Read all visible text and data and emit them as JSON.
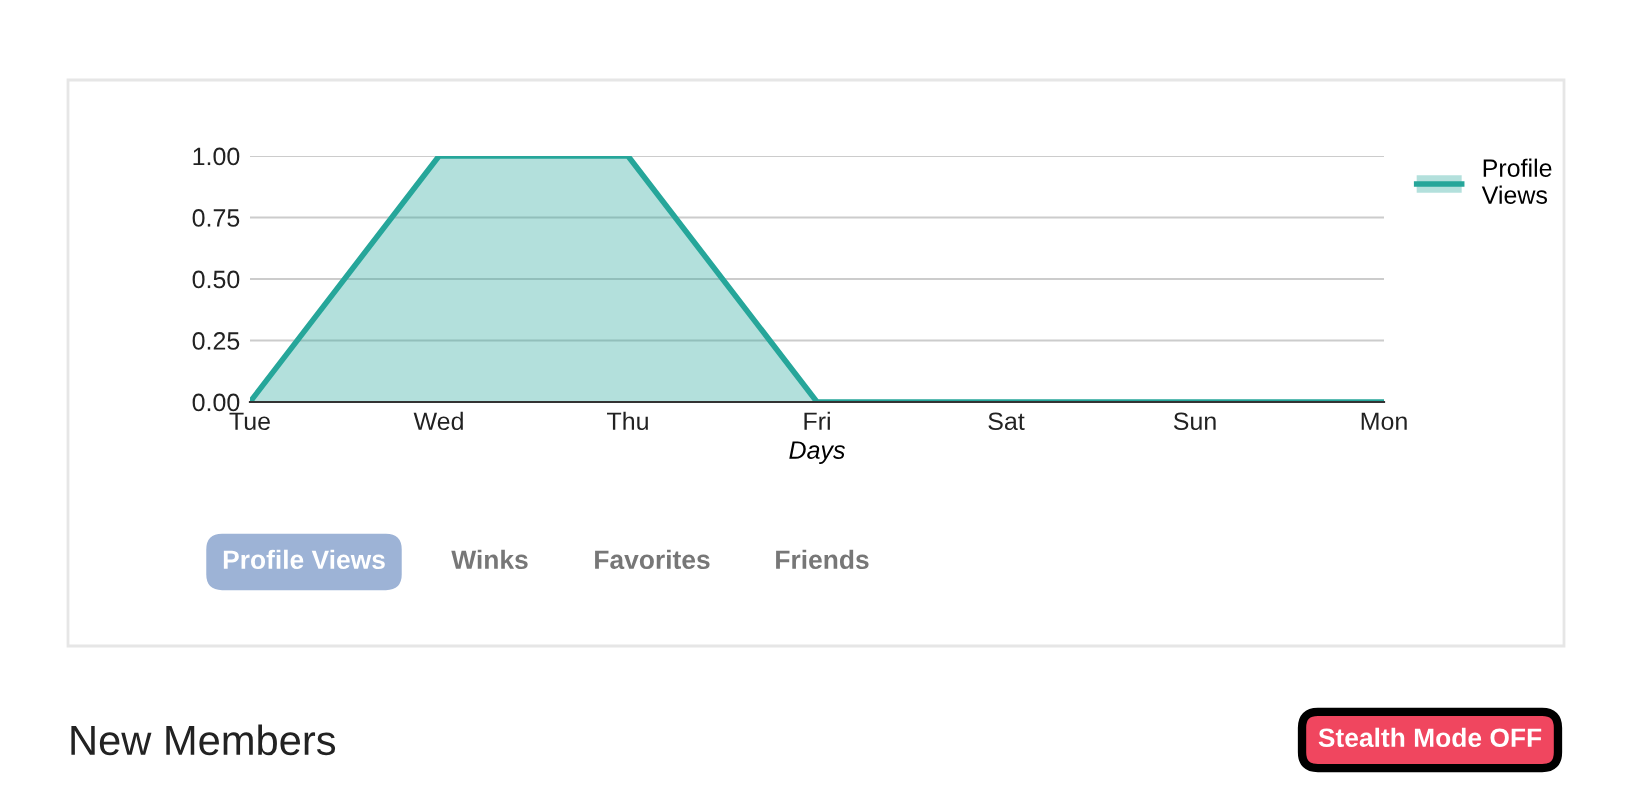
{
  "chart_data": {
    "type": "area",
    "categories": [
      "Tue",
      "Wed",
      "Thu",
      "Fri",
      "Sat",
      "Sun",
      "Mon"
    ],
    "series": [
      {
        "name": "Profile\nViews",
        "color": "#26a69a",
        "values": [
          0,
          1,
          1,
          0,
          0,
          0,
          0
        ]
      }
    ],
    "xlabel": "Days",
    "ylim": [
      0,
      1
    ],
    "yticks": [
      {
        "value": 0,
        "label": "0.00"
      },
      {
        "value": 0.25,
        "label": "0.25"
      },
      {
        "value": 0.5,
        "label": "0.50"
      },
      {
        "value": 0.75,
        "label": "0.75"
      },
      {
        "value": 1,
        "label": "1.00"
      }
    ],
    "grid": "y",
    "legend": "top right",
    "annotations": [
      "Profile Views",
      "Winks",
      "Favorites",
      "Friends",
      "New Members",
      "Stealth Mode OFF"
    ]
  }
}
